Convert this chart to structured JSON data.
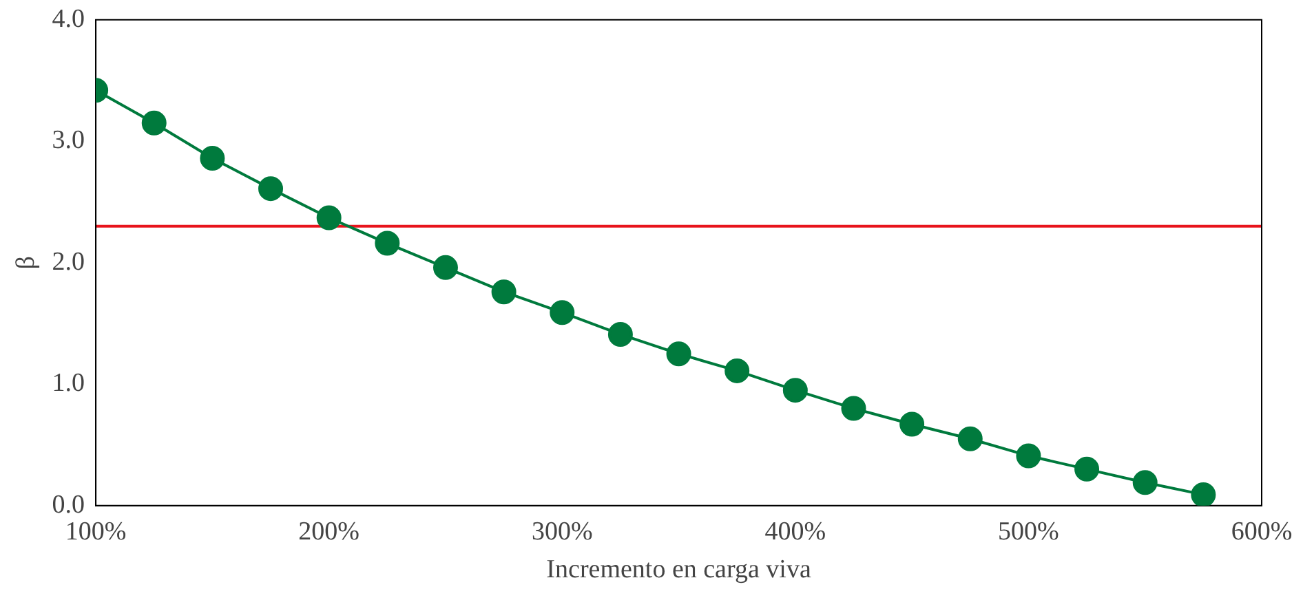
{
  "chart_data": {
    "type": "line",
    "xlabel": "Incremento en carga viva",
    "ylabel": "β",
    "x": [
      100,
      125,
      150,
      175,
      200,
      225,
      250,
      275,
      300,
      325,
      350,
      375,
      400,
      425,
      450,
      475,
      500,
      525,
      550,
      575
    ],
    "series": [
      {
        "color": "#007a3d",
        "values": [
          3.42,
          3.15,
          2.86,
          2.61,
          2.37,
          2.16,
          1.96,
          1.76,
          1.59,
          1.41,
          1.25,
          1.11,
          0.95,
          0.8,
          0.67,
          0.55,
          0.41,
          0.3,
          0.19,
          0.09
        ]
      }
    ],
    "xlim": [
      100,
      600
    ],
    "xticks": [
      {
        "value": 100,
        "label": "100%"
      },
      {
        "value": 200,
        "label": "200%"
      },
      {
        "value": 300,
        "label": "300%"
      },
      {
        "value": 400,
        "label": "400%"
      },
      {
        "value": 500,
        "label": "500%"
      },
      {
        "value": 600,
        "label": "600%"
      }
    ],
    "ylim": [
      0,
      4
    ],
    "yticks": [
      {
        "value": 0,
        "label": "0.0"
      },
      {
        "value": 1,
        "label": "1.0"
      },
      {
        "value": 2,
        "label": "2.0"
      },
      {
        "value": 3,
        "label": "3.0"
      },
      {
        "value": 4,
        "label": "4.0"
      }
    ],
    "ref_lines": [
      {
        "axis": "y",
        "value": 2.3,
        "color": "#e8141c"
      }
    ],
    "grid": false,
    "legend": false,
    "marker": "circle",
    "line_style": "solid"
  }
}
